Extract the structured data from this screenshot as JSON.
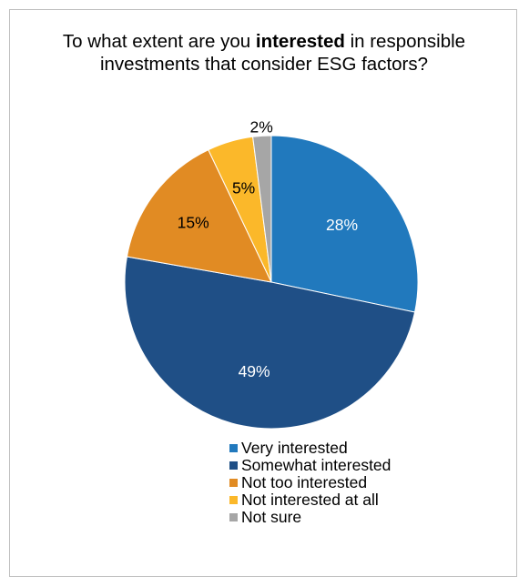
{
  "chart_data": {
    "type": "pie",
    "title": {
      "before": "To what extent are you ",
      "bold": "interested",
      "after": " in responsible investments that consider ESG factors?"
    },
    "start_angle_deg": 0,
    "direction": "clockwise",
    "legend_position": "bottom",
    "slices": [
      {
        "label": "Very interested",
        "value": 28,
        "display": "28%",
        "color": "#2179bd",
        "label_color": "#ffffff"
      },
      {
        "label": "Somewhat interested",
        "value": 49,
        "display": "49%",
        "color": "#1f4f86",
        "label_color": "#ffffff"
      },
      {
        "label": "Not too interested",
        "value": 15,
        "display": "15%",
        "color": "#e18b23",
        "label_color": "#000000"
      },
      {
        "label": "Not interested at all",
        "value": 5,
        "display": "5%",
        "color": "#fbb82a",
        "label_color": "#000000"
      },
      {
        "label": "Not sure",
        "value": 2,
        "display": "2%",
        "color": "#a6a6a6",
        "label_color": "#000000"
      }
    ]
  }
}
